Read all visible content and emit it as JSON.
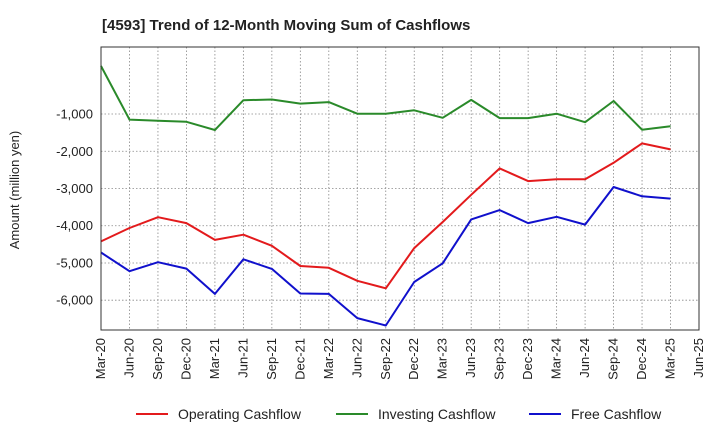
{
  "chart_data": {
    "type": "line",
    "title": "[4593]  Trend of 12-Month Moving Sum of Cashflows",
    "ylabel": "Amount (million yen)",
    "xlabel": "",
    "x": [
      "Mar-20",
      "Jun-20",
      "Sep-20",
      "Dec-20",
      "Mar-21",
      "Jun-21",
      "Sep-21",
      "Dec-21",
      "Mar-22",
      "Jun-22",
      "Sep-22",
      "Dec-22",
      "Mar-23",
      "Jun-23",
      "Sep-23",
      "Dec-23",
      "Mar-24",
      "Jun-24",
      "Sep-24",
      "Dec-24",
      "Mar-25",
      "Jun-25"
    ],
    "ylim": [
      -6800,
      800
    ],
    "yticks": [
      -1000,
      -2000,
      -3000,
      -4000,
      -5000,
      -6000
    ],
    "ytick_labels": [
      "-1,000",
      "-2,000",
      "-3,000",
      "-4,000",
      "-5,000",
      "-6,000"
    ],
    "grid": true,
    "legend_position": "bottom",
    "series": [
      {
        "name": "Operating Cashflow",
        "color": "#e31a1c",
        "values": [
          -4420,
          -4060,
          -3770,
          -3930,
          -4380,
          -4240,
          -4540,
          -5080,
          -5130,
          -5480,
          -5680,
          -4600,
          -3900,
          -3170,
          -2460,
          -2800,
          -2750,
          -2750,
          -2310,
          -1790,
          -1950,
          null
        ]
      },
      {
        "name": "Investing Cashflow",
        "color": "#2a8a2a",
        "values": [
          290,
          -1150,
          -1180,
          -1210,
          -1430,
          -630,
          -610,
          -720,
          -680,
          -990,
          -990,
          -900,
          -1100,
          -620,
          -1110,
          -1110,
          -990,
          -1220,
          -650,
          -1420,
          -1330,
          null
        ]
      },
      {
        "name": "Free Cashflow",
        "color": "#1010cc",
        "values": [
          -4720,
          -5220,
          -4980,
          -5150,
          -5830,
          -4900,
          -5160,
          -5820,
          -5830,
          -6480,
          -6680,
          -5510,
          -5010,
          -3830,
          -3580,
          -3930,
          -3760,
          -3970,
          -2960,
          -3210,
          -3270,
          null
        ]
      }
    ]
  }
}
